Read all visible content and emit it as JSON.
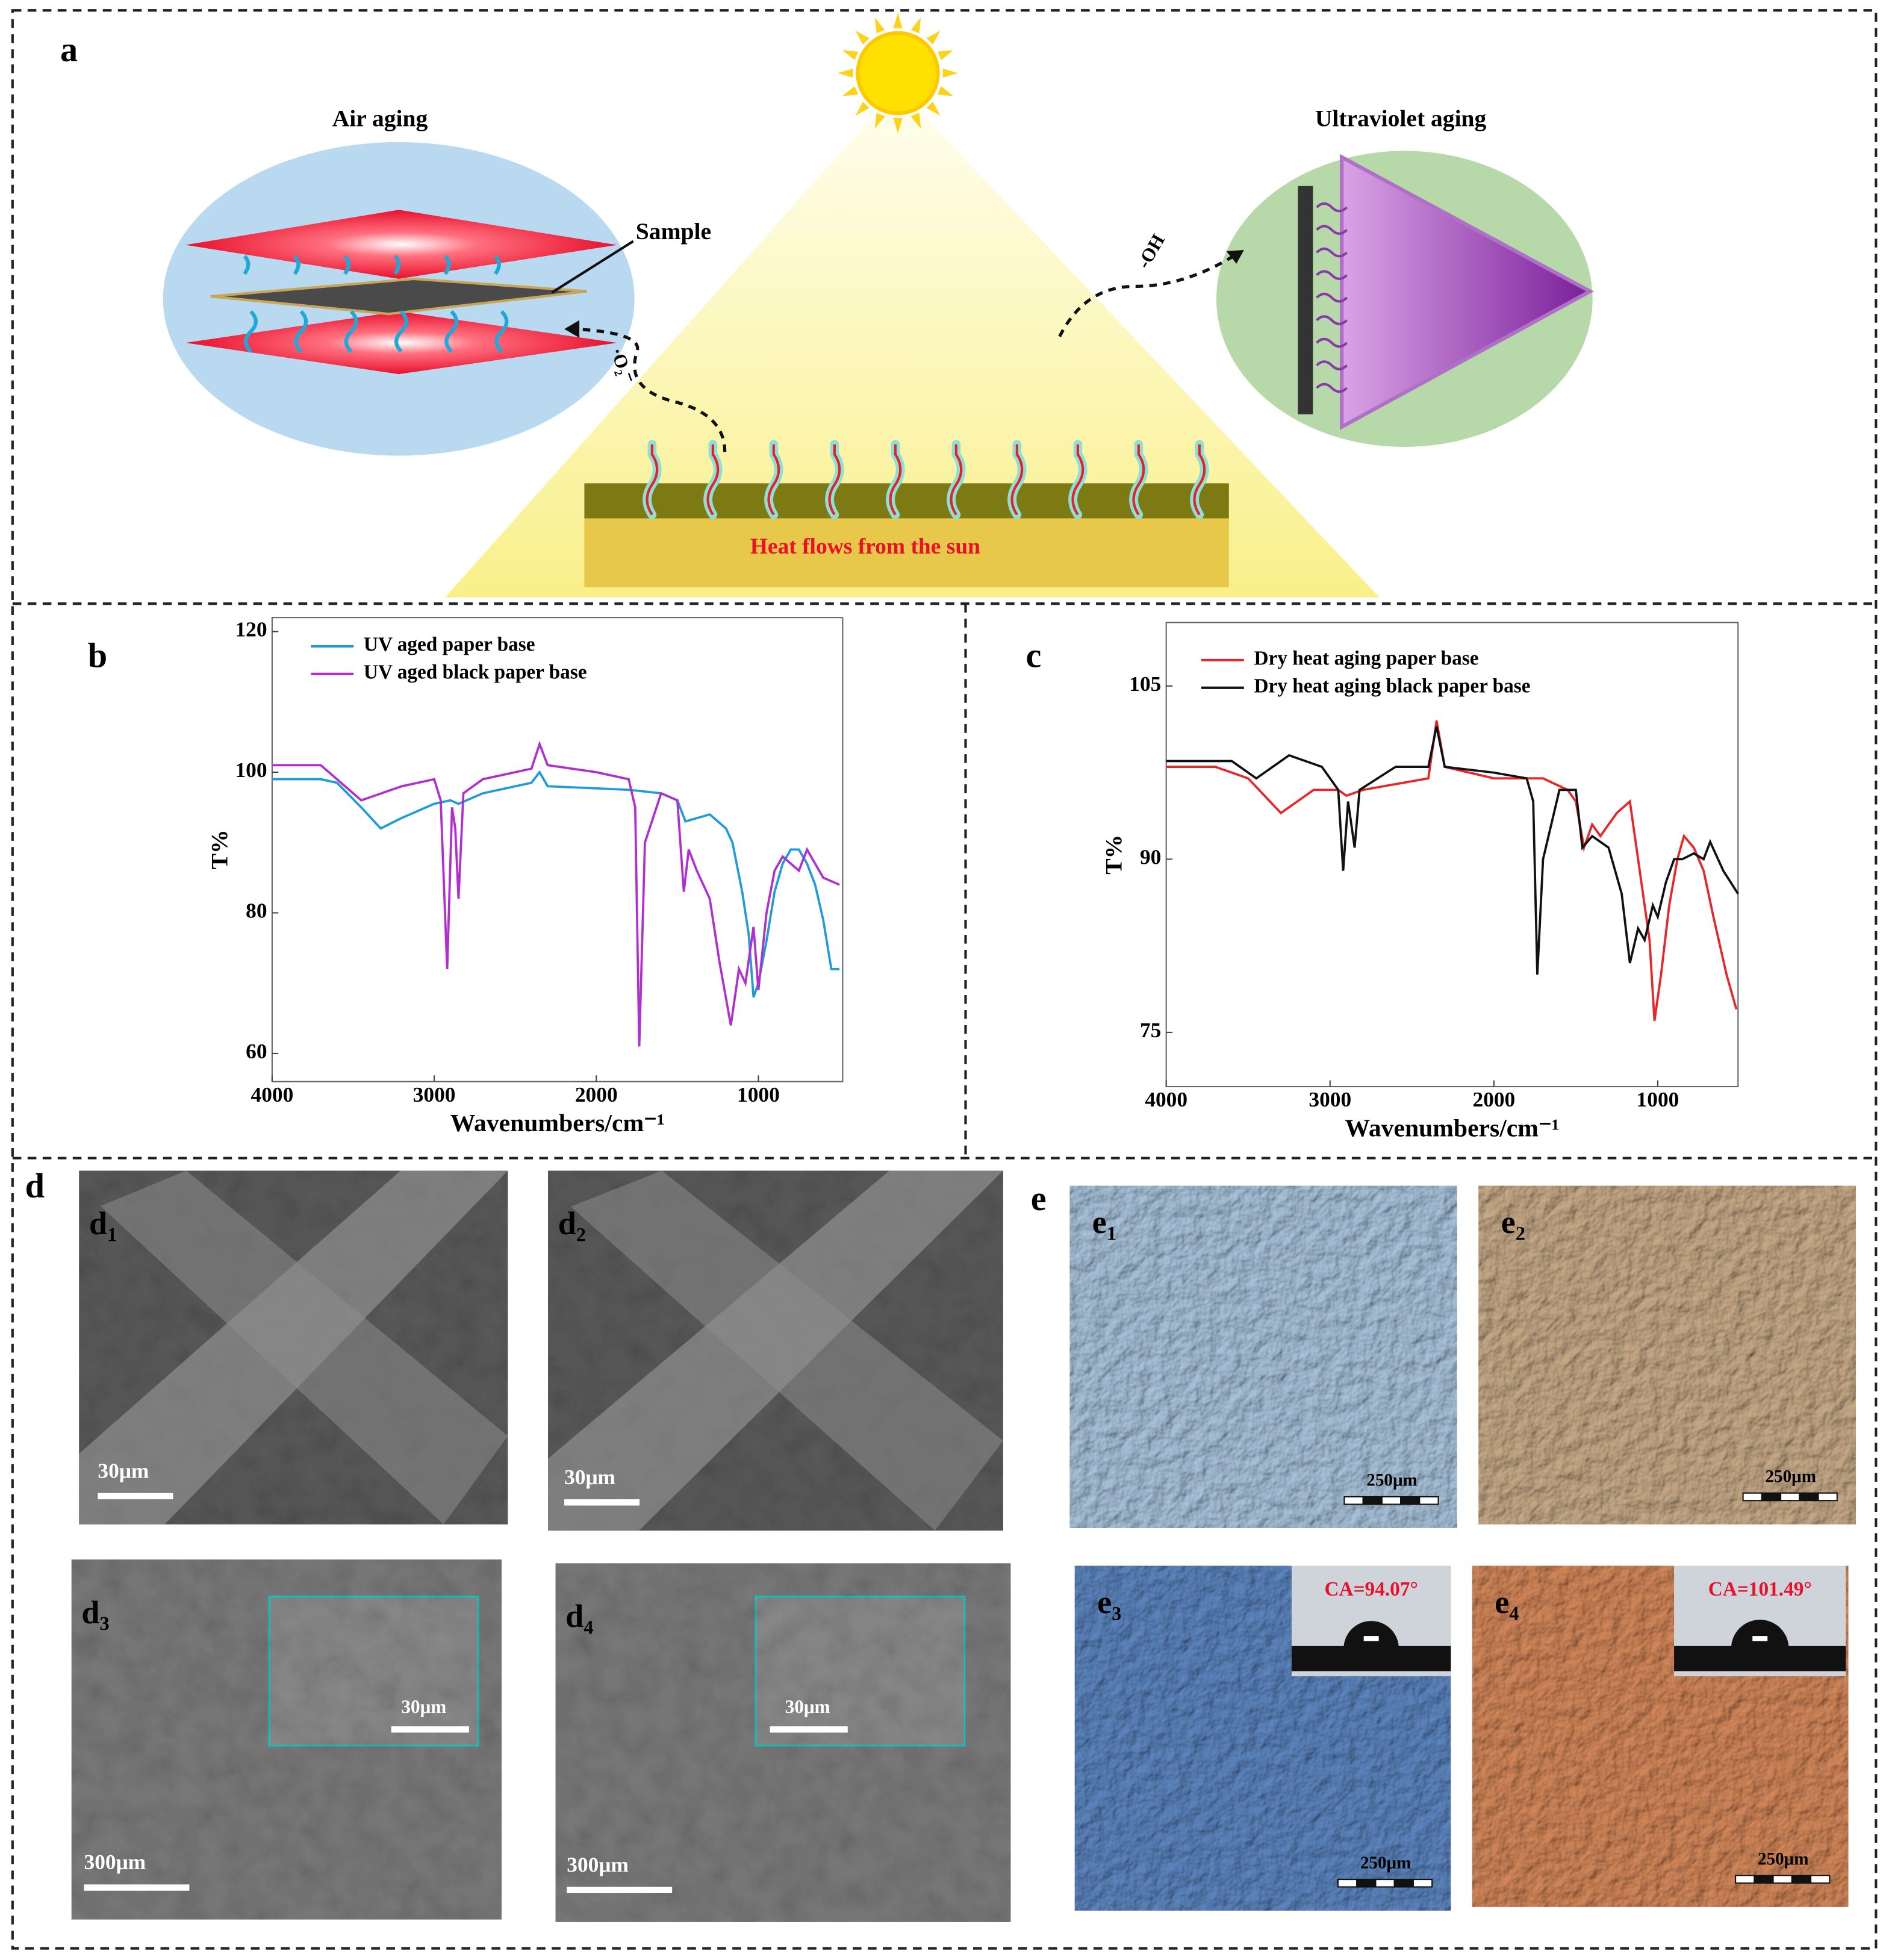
{
  "panel_a": {
    "label": "a",
    "air_aging": "Air aging",
    "sample": "Sample",
    "uv_aging": "Ultraviolet aging",
    "oh": "-OH",
    "o2": "·O₂⁻",
    "heat": "Heat flows from the sun"
  },
  "chart_data": [
    {
      "label": "b",
      "type": "line",
      "xlabel": "Wavenumbers/cm⁻¹",
      "ylabel": "T%",
      "xlim": [
        4000,
        480
      ],
      "ylim": [
        56,
        122
      ],
      "xticks": [
        4000,
        3000,
        2000,
        1000
      ],
      "yticks": [
        60,
        80,
        100,
        120
      ],
      "series": [
        {
          "name": "UV aged paper base",
          "color": "#1f9bd7",
          "x": [
            4000,
            3700,
            3600,
            3450,
            3330,
            3200,
            3000,
            2900,
            2850,
            2700,
            2400,
            2350,
            2300,
            1800,
            1600,
            1500,
            1450,
            1300,
            1200,
            1160,
            1100,
            1060,
            1030,
            1000,
            950,
            900,
            850,
            800,
            750,
            700,
            650,
            600,
            550,
            500
          ],
          "values": [
            99,
            99,
            98.5,
            95,
            92,
            93.5,
            95.5,
            96,
            95.5,
            97,
            98.5,
            100,
            98,
            97.5,
            97,
            96,
            93,
            94,
            92,
            90,
            83,
            77,
            68,
            70,
            76,
            83,
            87,
            89,
            89,
            87,
            84,
            79,
            72,
            72
          ]
        },
        {
          "name": "UV aged black paper base",
          "color": "#b02fd0",
          "x": [
            4000,
            3700,
            3600,
            3450,
            3200,
            3000,
            2960,
            2920,
            2890,
            2870,
            2850,
            2820,
            2700,
            2400,
            2350,
            2300,
            2000,
            1800,
            1760,
            1735,
            1700,
            1600,
            1500,
            1460,
            1430,
            1380,
            1300,
            1240,
            1170,
            1120,
            1080,
            1030,
            1000,
            950,
            900,
            850,
            800,
            750,
            700,
            650,
            600,
            500
          ],
          "values": [
            101,
            101,
            99,
            96,
            98,
            99,
            96,
            72,
            95,
            92,
            82,
            97,
            99,
            100.5,
            104,
            101,
            100,
            99,
            95,
            61,
            90,
            97,
            96,
            83,
            89,
            86,
            82,
            73,
            64,
            72,
            70,
            78,
            69,
            80,
            86,
            88,
            87,
            86,
            89,
            87,
            85,
            84
          ]
        }
      ]
    },
    {
      "label": "c",
      "type": "line",
      "xlabel": "Wavenumbers/cm⁻¹",
      "ylabel": "T%",
      "xlim": [
        4000,
        510
      ],
      "ylim": [
        70.3,
        110.5
      ],
      "xticks": [
        4000,
        3000,
        2000,
        1000
      ],
      "yticks": [
        75,
        90,
        105
      ],
      "series": [
        {
          "name": "Dry heat aging paper base",
          "color": "#e8262a",
          "x": [
            4000,
            3700,
            3500,
            3300,
            3100,
            2950,
            2900,
            2800,
            2400,
            2350,
            2300,
            2000,
            1700,
            1550,
            1500,
            1450,
            1400,
            1350,
            1250,
            1170,
            1130,
            1100,
            1050,
            1020,
            980,
            930,
            880,
            840,
            780,
            720,
            660,
            580,
            520
          ],
          "values": [
            98,
            98,
            97,
            94,
            96,
            96,
            95.5,
            96,
            97,
            102,
            98,
            97,
            97,
            96,
            95,
            91,
            93,
            92,
            94,
            95,
            91,
            88,
            83,
            76,
            80,
            86,
            90,
            92,
            91,
            89,
            85,
            80,
            77
          ]
        },
        {
          "name": "Dry heat aging black paper base",
          "color": "#111111",
          "x": [
            4000,
            3600,
            3450,
            3250,
            3050,
            2950,
            2920,
            2890,
            2850,
            2820,
            2600,
            2400,
            2350,
            2300,
            2000,
            1800,
            1760,
            1735,
            1700,
            1600,
            1500,
            1460,
            1400,
            1300,
            1220,
            1170,
            1120,
            1080,
            1030,
            1000,
            950,
            900,
            850,
            780,
            720,
            680,
            600,
            510
          ],
          "values": [
            98.5,
            98.5,
            97,
            99,
            98,
            96,
            89,
            95,
            91,
            96,
            98,
            98,
            101.5,
            98,
            97.5,
            97,
            95,
            80,
            90,
            96,
            96,
            91,
            92,
            91,
            87,
            81,
            84,
            83,
            86,
            85,
            88,
            90,
            90,
            90.5,
            90,
            91.5,
            89,
            87
          ]
        }
      ]
    }
  ],
  "panel_d": {
    "label": "d",
    "images": [
      {
        "letter": "d",
        "sub": "1",
        "scale": "30μm"
      },
      {
        "letter": "d",
        "sub": "2",
        "scale": "30μm"
      },
      {
        "letter": "d",
        "sub": "3",
        "scale": "300μm",
        "inset_scale": "30μm"
      },
      {
        "letter": "d",
        "sub": "4",
        "scale": "300μm",
        "inset_scale": "30μm"
      }
    ]
  },
  "panel_e": {
    "label": "e",
    "images": [
      {
        "letter": "e",
        "sub": "1",
        "scale": "250μm"
      },
      {
        "letter": "e",
        "sub": "2",
        "scale": "250μm"
      },
      {
        "letter": "e",
        "sub": "3",
        "scale": "250μm",
        "ca": "CA=94.07°"
      },
      {
        "letter": "e",
        "sub": "4",
        "scale": "250μm",
        "ca": "CA=101.49°"
      }
    ]
  }
}
